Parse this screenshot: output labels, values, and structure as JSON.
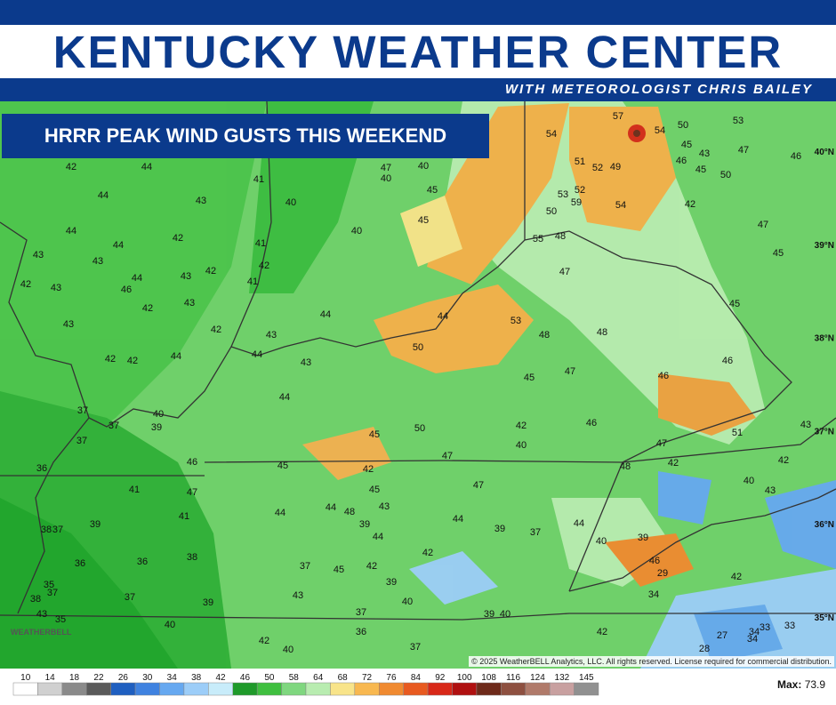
{
  "header": {
    "title": "KENTUCKY WEATHER CENTER",
    "subtitle": "WITH METEOROLOGIST CHRIS BAILEY"
  },
  "map": {
    "title": "HRRR PEAK WIND GUSTS THIS WEEKEND",
    "gust_labels": [
      57,
      54,
      54,
      50,
      53,
      45,
      43,
      47,
      46,
      46,
      45,
      50,
      42,
      44,
      47,
      40,
      40,
      51,
      52,
      49,
      41,
      44,
      45,
      43,
      40,
      53,
      52,
      59,
      50,
      54,
      42,
      44,
      45,
      40,
      47,
      44,
      42,
      41,
      55,
      48,
      43,
      43,
      42,
      42,
      43,
      44,
      45,
      42,
      43,
      46,
      41,
      47,
      42,
      43,
      44,
      44,
      45,
      53,
      43,
      42,
      43,
      48,
      48,
      50,
      42,
      42,
      44,
      44,
      43,
      46,
      47,
      45,
      46,
      44,
      37,
      37,
      40,
      39,
      42,
      46,
      43,
      37,
      45,
      50,
      40,
      51,
      47,
      47,
      46,
      45,
      42,
      48,
      42,
      42,
      36,
      40,
      41,
      47,
      45,
      47,
      43,
      44,
      48,
      43,
      41,
      44,
      44,
      39,
      44,
      38,
      37,
      39,
      39,
      37,
      44,
      40,
      39,
      38,
      42,
      36,
      36,
      37,
      45,
      42,
      46,
      29,
      42,
      35,
      37,
      39,
      37,
      43,
      38,
      34,
      40,
      39,
      37,
      39,
      40,
      43,
      35,
      40,
      33,
      33,
      36,
      42,
      27,
      34,
      34,
      42,
      37,
      40,
      28
    ],
    "latitude_labels": [
      "40°N",
      "39°N",
      "38°N",
      "37°N",
      "36°N",
      "35°N"
    ],
    "copyright": "© 2025 WeatherBELL Analytics, LLC. All rights reserved. License required for commercial distribution.",
    "logo": "WEATHERBELL"
  },
  "legend": {
    "ticks": [
      10,
      14,
      18,
      22,
      26,
      30,
      34,
      38,
      42,
      46,
      50,
      58,
      64,
      68,
      72,
      76,
      84,
      92,
      100,
      108,
      116,
      124,
      132,
      145
    ],
    "colors": [
      "#ffffff",
      "#d0d0d0",
      "#8a8a8a",
      "#5a5a5a",
      "#1f5fc0",
      "#3f82e0",
      "#66a8f0",
      "#9ccdf8",
      "#c8ecfa",
      "#1f9a2a",
      "#3fbf3f",
      "#7fd77f",
      "#b8ecb0",
      "#f8e48a",
      "#f8b850",
      "#f08a30",
      "#e85a20",
      "#d82818",
      "#b01010",
      "#6e2a1a",
      "#8e5040",
      "#b07a6a",
      "#c8a0a0",
      "#909090"
    ],
    "max_label": "Max:",
    "max_value": 73.9
  }
}
